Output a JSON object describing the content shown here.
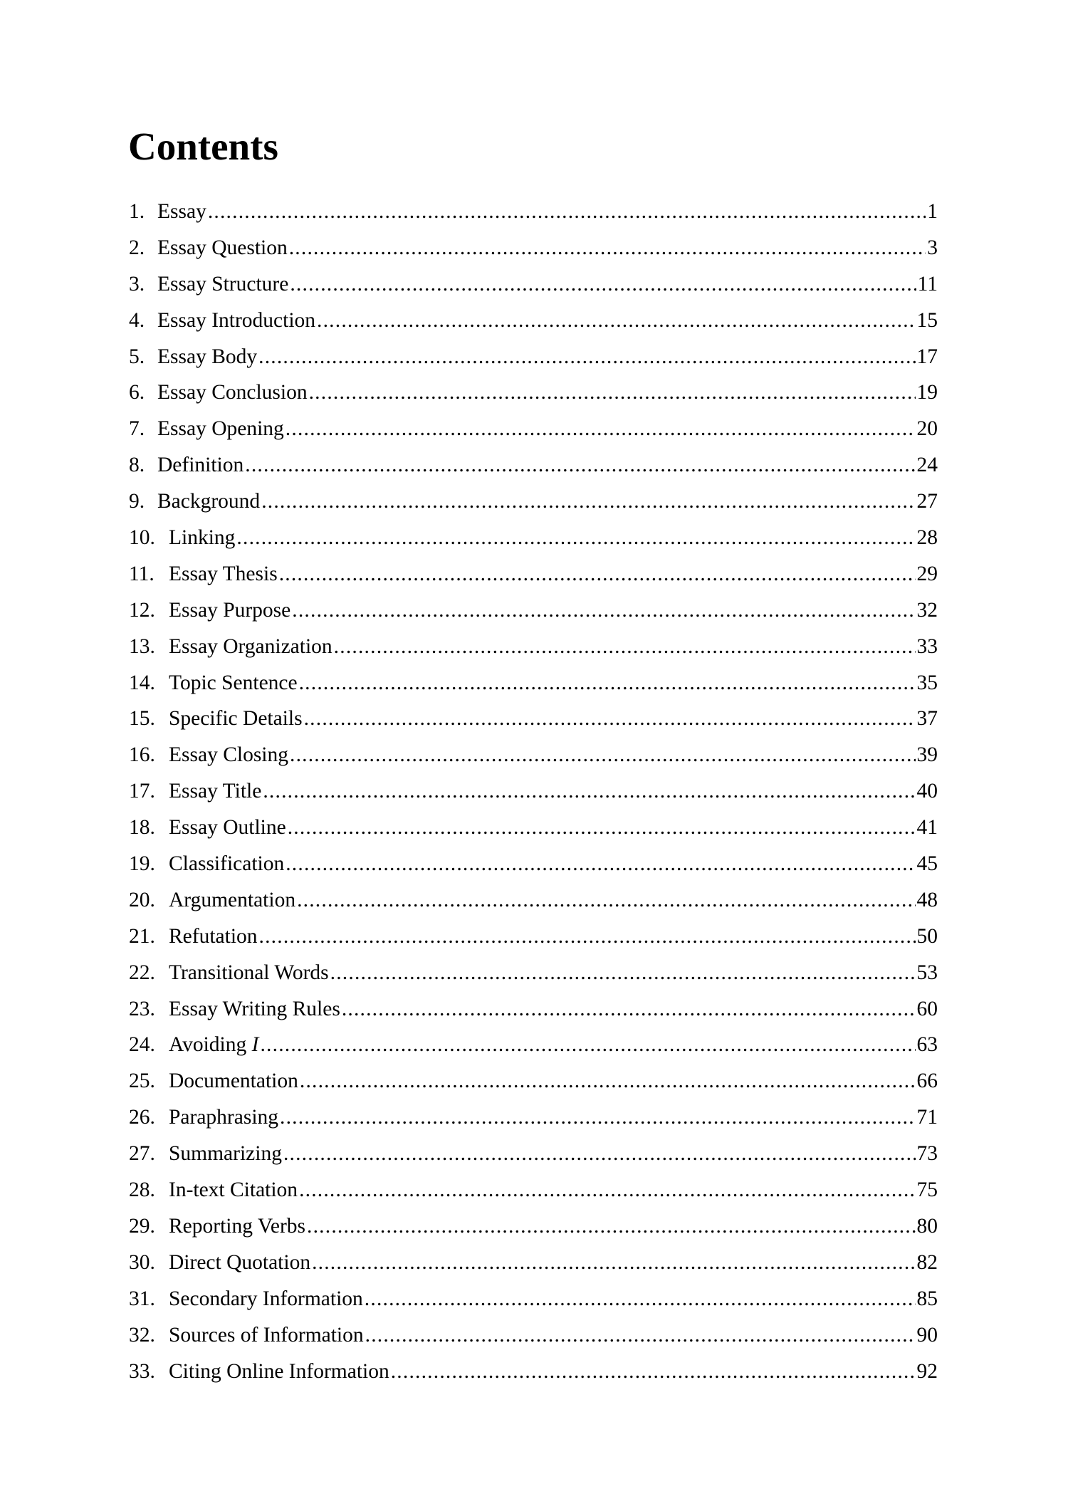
{
  "title": "Contents",
  "entries": [
    {
      "num": "1.",
      "label": "Essay",
      "page": "1"
    },
    {
      "num": "2.",
      "label": "Essay Question",
      "page": "3"
    },
    {
      "num": "3.",
      "label": "Essay Structure",
      "page": "11"
    },
    {
      "num": "4.",
      "label": "Essay Introduction",
      "page": "15"
    },
    {
      "num": "5.",
      "label": "Essay Body",
      "page": "17"
    },
    {
      "num": "6.",
      "label": "Essay Conclusion",
      "page": "19"
    },
    {
      "num": "7.",
      "label": "Essay Opening",
      "page": "20"
    },
    {
      "num": "8.",
      "label": "Definition",
      "page": "24"
    },
    {
      "num": "9.",
      "label": "Background",
      "page": "27"
    },
    {
      "num": "10.",
      "label": "Linking",
      "page": "28"
    },
    {
      "num": "11.",
      "label": "Essay Thesis",
      "page": "29"
    },
    {
      "num": "12.",
      "label": "Essay Purpose",
      "page": "32"
    },
    {
      "num": "13.",
      "label": "Essay Organization",
      "page": "33"
    },
    {
      "num": "14.",
      "label": "Topic Sentence",
      "page": "35"
    },
    {
      "num": "15.",
      "label": "Specific Details",
      "page": "37"
    },
    {
      "num": "16.",
      "label": "Essay Closing",
      "page": "39"
    },
    {
      "num": "17.",
      "label": "Essay Title",
      "page": "40"
    },
    {
      "num": "18.",
      "label": "Essay Outline",
      "page": "41"
    },
    {
      "num": "19.",
      "label": "Classification",
      "page": "45"
    },
    {
      "num": "20.",
      "label": "Argumentation",
      "page": "48"
    },
    {
      "num": "21.",
      "label": "Refutation",
      "page": "50"
    },
    {
      "num": "22.",
      "label": "Transitional Words",
      "page": "53"
    },
    {
      "num": "23.",
      "label": "Essay Writing Rules",
      "page": "60"
    },
    {
      "num": "24.",
      "label": "Avoiding",
      "label_italic": "I",
      "page": "63"
    },
    {
      "num": "25.",
      "label": "Documentation",
      "page": "66"
    },
    {
      "num": "26.",
      "label": "Paraphrasing",
      "page": "71"
    },
    {
      "num": "27.",
      "label": "Summarizing",
      "page": "73"
    },
    {
      "num": "28.",
      "label": "In-text Citation",
      "page": "75"
    },
    {
      "num": "29.",
      "label": "Reporting Verbs",
      "page": "80"
    },
    {
      "num": "30.",
      "label": "Direct Quotation",
      "page": "82"
    },
    {
      "num": "31.",
      "label": "Secondary Information",
      "page": "85"
    },
    {
      "num": "32.",
      "label": "Sources of Information",
      "page": "90"
    },
    {
      "num": "33.",
      "label": "Citing Online Information",
      "page": "92"
    }
  ]
}
